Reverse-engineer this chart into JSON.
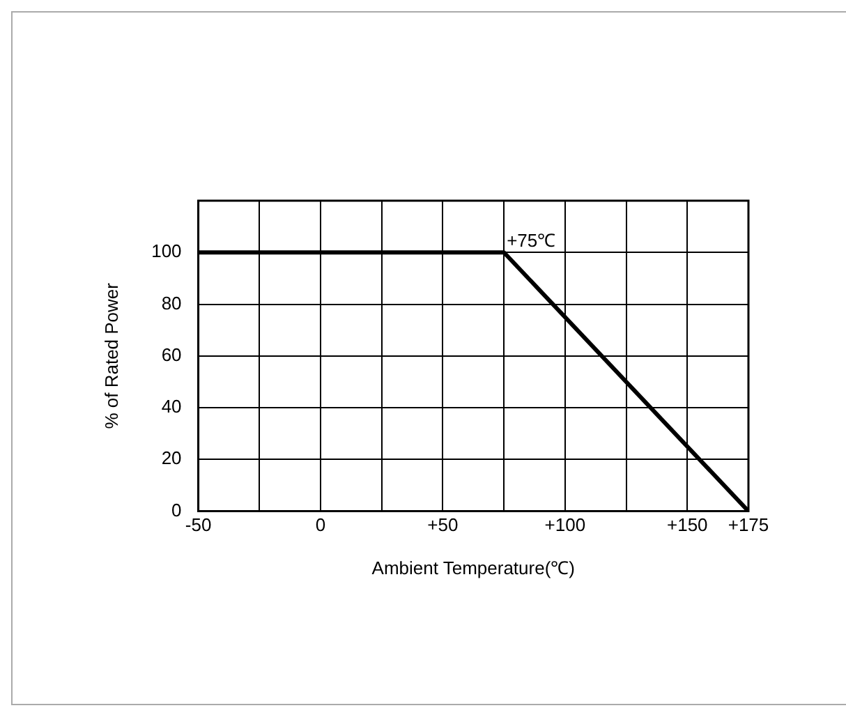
{
  "chart_data": {
    "type": "line",
    "xlabel": "Ambient Temperature(℃)",
    "ylabel": "% of Rated Power",
    "x": [
      -50,
      75,
      175
    ],
    "series": [
      {
        "color": "#000000",
        "values": [
          100,
          100,
          0
        ]
      }
    ],
    "xlim": [
      -50,
      175
    ],
    "xticks": [
      -50,
      {
        "value": -25,
        "label": null
      },
      0,
      {
        "value": 25,
        "label": null
      },
      {
        "value": 50,
        "label": "+50"
      },
      {
        "value": 75,
        "label": null
      },
      {
        "value": 100,
        "label": "+100"
      },
      {
        "value": 125,
        "label": null
      },
      {
        "value": 150,
        "label": "+150"
      },
      {
        "value": 175,
        "label": "+175"
      }
    ],
    "ylim": [
      0,
      120
    ],
    "yticks": [
      0,
      20,
      40,
      60,
      80,
      100
    ],
    "annotations": [
      {
        "text": "+75℃",
        "x": 75,
        "y": 100
      }
    ],
    "grid": true,
    "legend": false,
    "marker": "none",
    "line_style": "solid"
  }
}
